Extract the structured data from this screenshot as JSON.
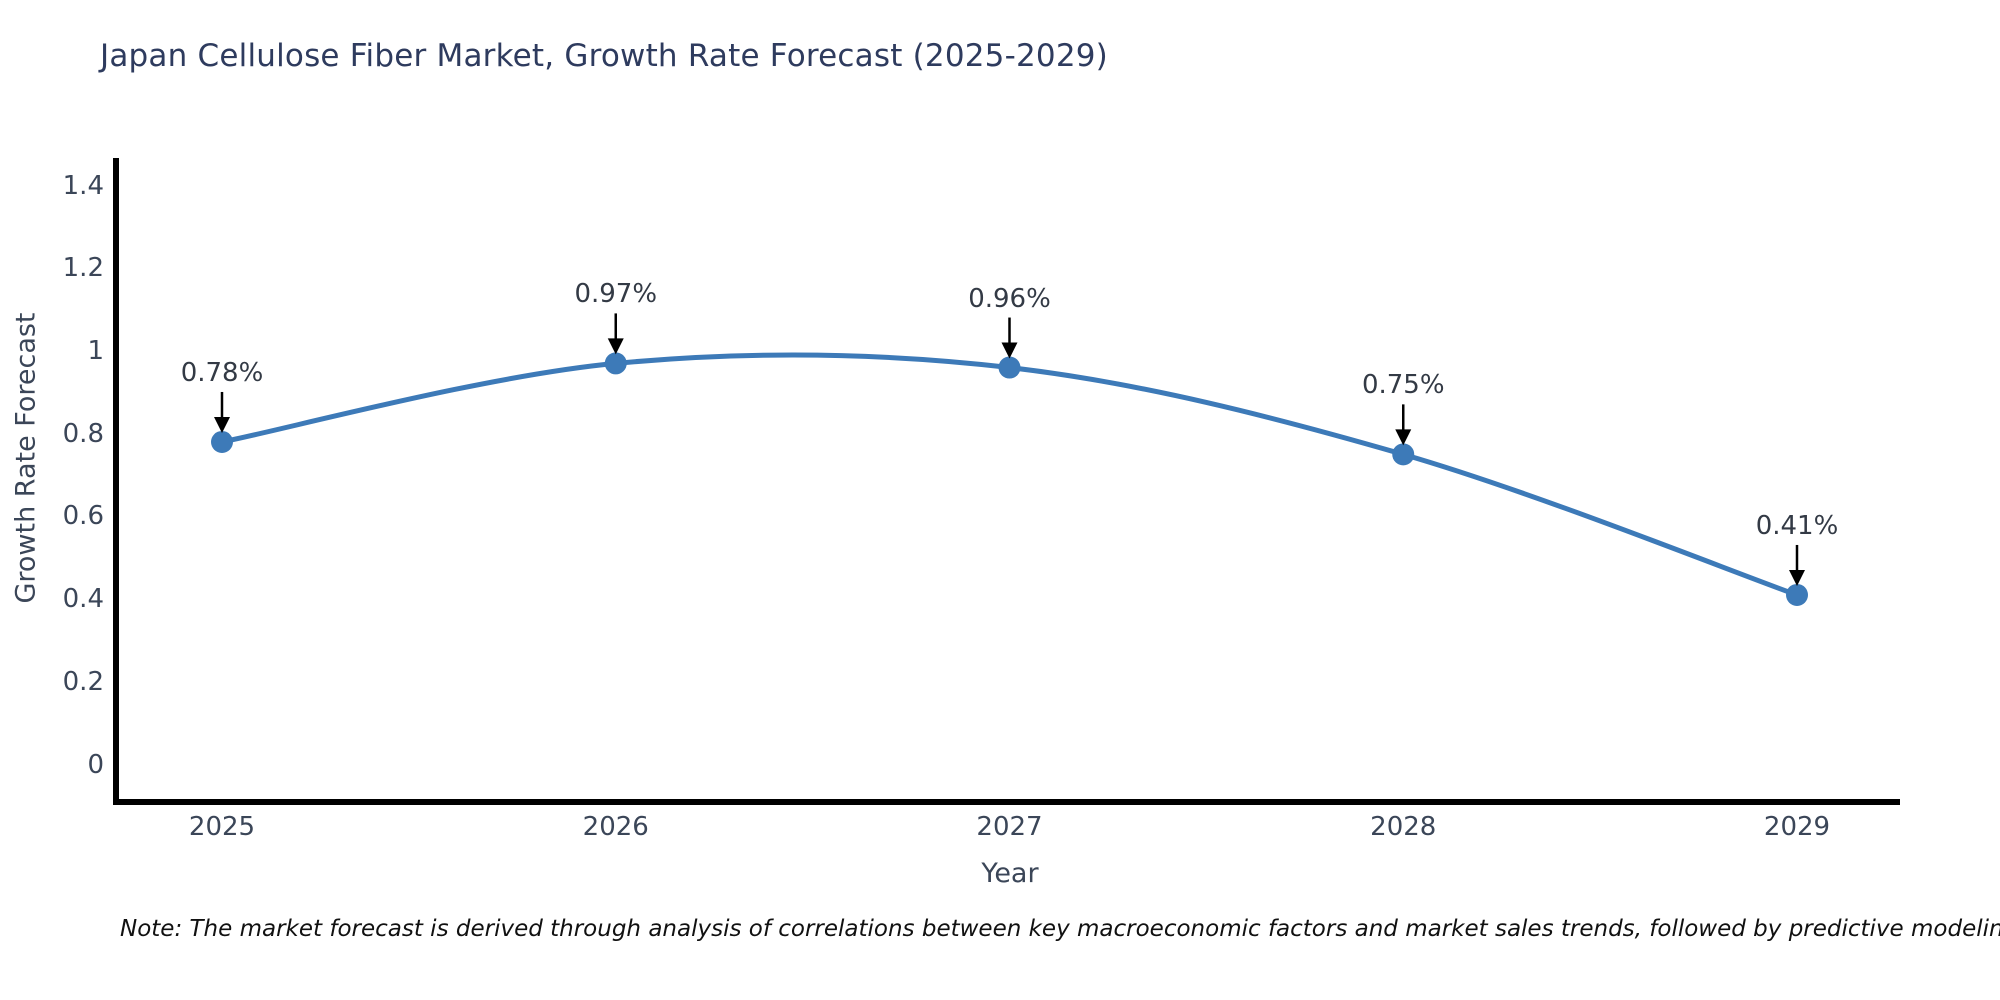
{
  "title": "Japan Cellulose Fiber Market, Growth Rate Forecast (2025-2029)",
  "note": "Note: The market forecast is derived through analysis of correlations between key macroeconomic factors and market sales trends, followed by predictive modeling to project future sales",
  "chart_data": {
    "type": "line",
    "title": "Japan Cellulose Fiber Market, Growth Rate Forecast (2025-2029)",
    "x": [
      2025,
      2026,
      2027,
      2028,
      2029
    ],
    "series": [
      {
        "name": "Growth Rate Forecast",
        "values": [
          0.78,
          0.97,
          0.96,
          0.75,
          0.41
        ],
        "point_labels": [
          "0.78%",
          "0.97%",
          "0.96%",
          "0.75%",
          "0.41%"
        ]
      }
    ],
    "xlabel": "Year",
    "ylabel": "Growth Rate Forecast",
    "xtick_labels": [
      "2025",
      "2026",
      "2027",
      "2028",
      "2029"
    ],
    "yticks": [
      0,
      0.2,
      0.4,
      0.6,
      0.8,
      1,
      1.2,
      1.4
    ],
    "ytick_labels": [
      "0",
      "0.2",
      "0.4",
      "0.6",
      "0.8",
      "1",
      "1.2",
      "1.4"
    ],
    "ylim": [
      -0.09,
      1.46
    ],
    "grid": false,
    "legend": "none",
    "smooth_line": true,
    "annotations_have_arrows": true
  },
  "colors": {
    "background": "#ffffff",
    "title_text": "#2e3b5e",
    "axis_text": "#3b4658",
    "annotation_text": "#333a45",
    "note_text": "#111111",
    "spine": "#000000",
    "line": "#3d7ab8",
    "marker": "#3d7ab8",
    "arrow": "#000000"
  }
}
